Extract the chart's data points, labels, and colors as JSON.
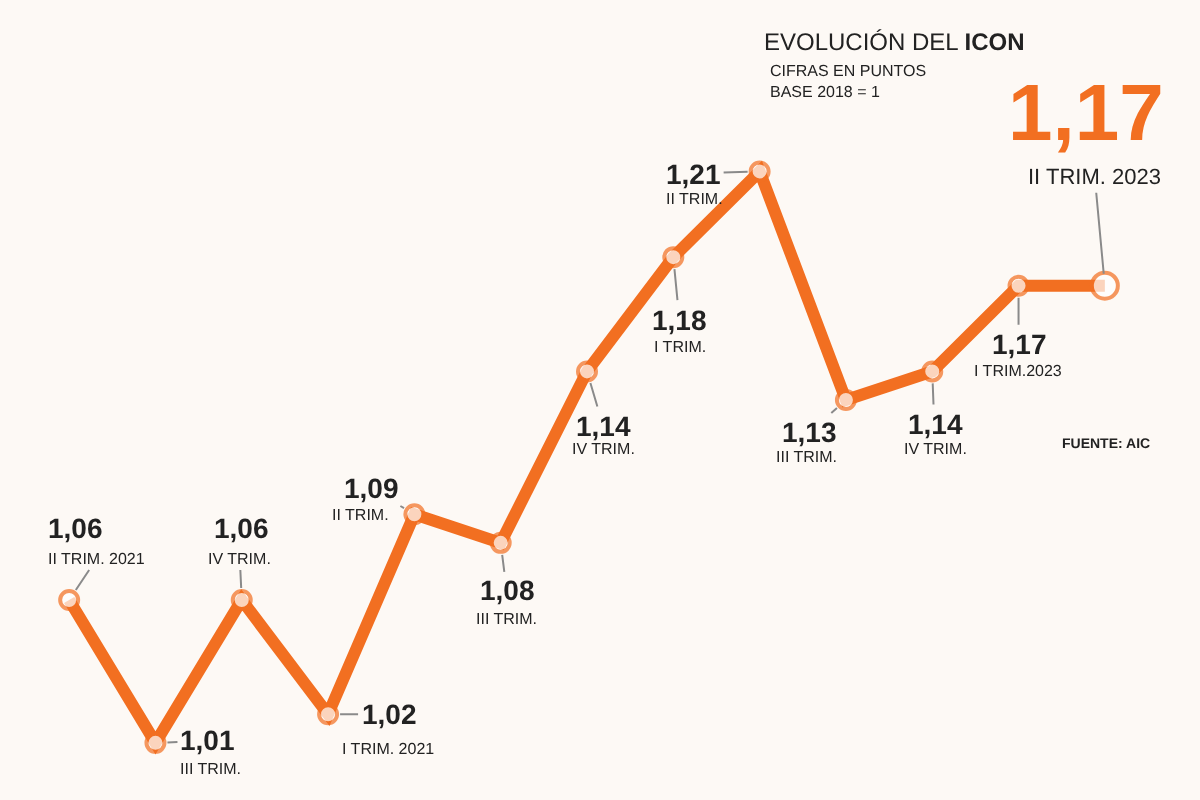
{
  "chart_data": {
    "type": "line",
    "title": "EVOLUCIÓN DEL ICON",
    "subtitle": "CIFRAS EN PUNTOS\nBASE 2018 = 1",
    "categories": [
      null,
      null,
      null,
      null,
      null,
      null,
      null,
      null,
      null,
      null,
      null,
      null,
      null
    ],
    "series": [
      {
        "color": "#f26f21",
        "values": [
          1.06,
          1.01,
          1.06,
          1.02,
          1.09,
          1.08,
          1.14,
          1.18,
          1.21,
          1.13,
          1.14,
          1.17,
          1.17
        ],
        "value_labels": [
          "1,06",
          "1,01",
          "1,06",
          "1,02",
          "1,09",
          "1,08",
          "1,14",
          "1,18",
          "1,21",
          "1,13",
          "1,14",
          "1,17",
          "1,17"
        ]
      }
    ],
    "marker": "circle",
    "tick_labels": false,
    "annotations": [
      "II TRIM. 2021",
      "III TRIM.",
      "IV TRIM.",
      "I TRIM. 2021",
      "II TRIM.",
      "III TRIM.",
      "IV TRIM.",
      "I TRIM.",
      "II TRIM.",
      "III TRIM.",
      "IV TRIM.",
      "I TRIM.2023",
      "II TRIM. 2023",
      "FUENTE: AIC"
    ]
  }
}
